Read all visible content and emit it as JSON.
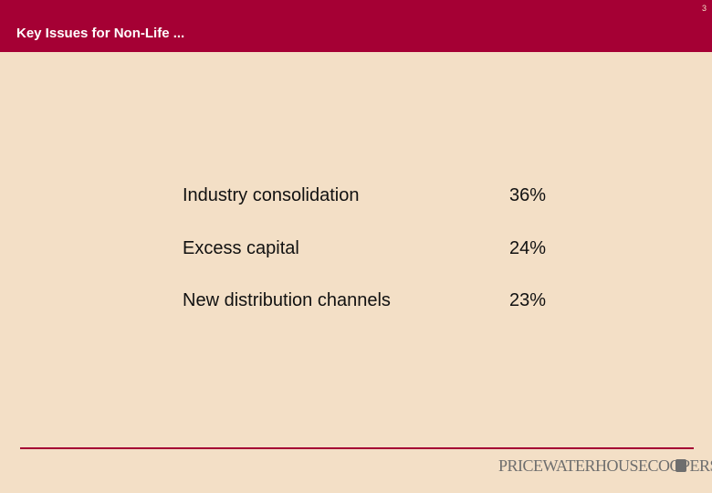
{
  "header": {
    "title": "Key Issues for Non-Life ...",
    "page_number": "3"
  },
  "table": {
    "rows": [
      [
        "Industry consolidation",
        "36%"
      ],
      [
        "Excess capital",
        "24%"
      ],
      [
        "New distribution channels",
        "23%"
      ]
    ]
  },
  "footer": {
    "logo": "PRICEWATERHOUSECOOPERS"
  }
}
